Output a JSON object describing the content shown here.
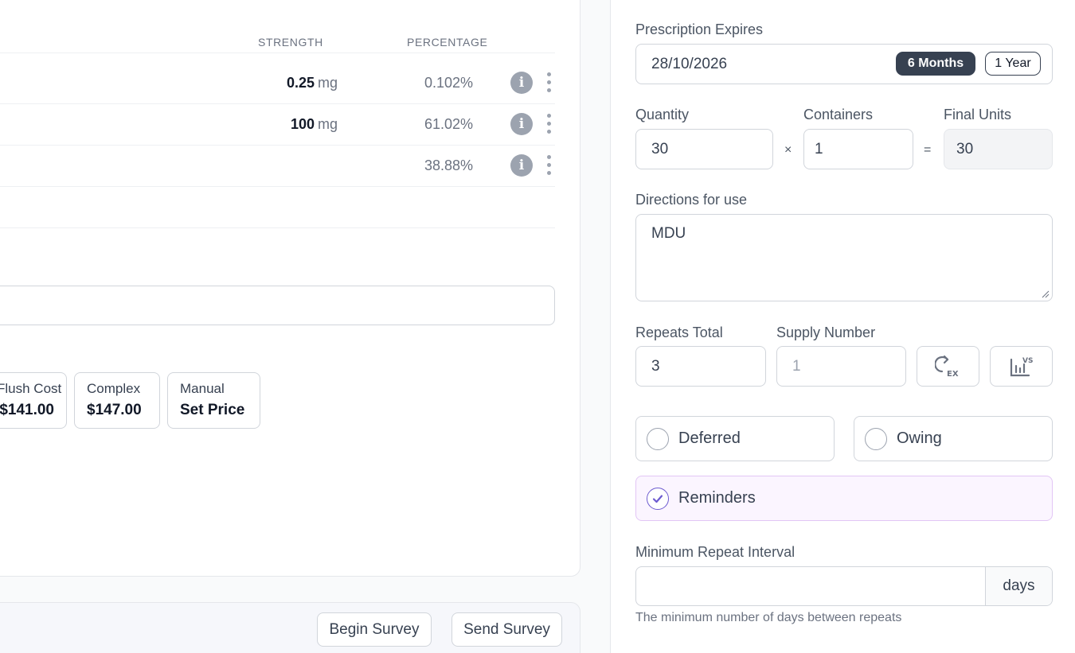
{
  "table": {
    "headers": {
      "strength": "STRENGTH",
      "percentage": "PERCENTAGE"
    },
    "rows": [
      {
        "strength": "0.25",
        "unit": "mg",
        "percentage": "0.102%"
      },
      {
        "strength": "100",
        "unit": "mg",
        "percentage": "61.02%"
      },
      {
        "strength": "",
        "unit": "",
        "percentage": "38.88%"
      }
    ]
  },
  "pricing": {
    "flush": {
      "label": "Flush Cost",
      "value": "$141.00"
    },
    "complex": {
      "label": "Complex",
      "value": "$147.00"
    },
    "manual": {
      "label": "Manual",
      "value": "Set Price"
    }
  },
  "footer": {
    "begin_survey": "Begin Survey",
    "send_survey": "Send Survey"
  },
  "prescription_expires": {
    "label": "Prescription Expires",
    "value": "28/10/2026",
    "options": [
      "6 Months",
      "1 Year"
    ],
    "selected": "6 Months"
  },
  "quantity": {
    "label": "Quantity",
    "value": "30"
  },
  "containers": {
    "label": "Containers",
    "value": "1"
  },
  "final_units": {
    "label": "Final Units",
    "value": "30"
  },
  "operators": {
    "times": "×",
    "equals": "="
  },
  "directions": {
    "label": "Directions for use",
    "value": "MDU"
  },
  "repeats_total": {
    "label": "Repeats Total",
    "value": "3"
  },
  "supply_number": {
    "label": "Supply Number",
    "value": "1"
  },
  "toggles": {
    "deferred": {
      "label": "Deferred",
      "checked": false
    },
    "owing": {
      "label": "Owing",
      "checked": false
    },
    "reminders": {
      "label": "Reminders",
      "checked": true
    }
  },
  "min_repeat_interval": {
    "label": "Minimum Repeat Interval",
    "value": "",
    "unit": "days",
    "help": "The minimum number of days between repeats"
  },
  "icons": {
    "info": "info-icon",
    "kebab": "more-vertical-icon",
    "repeat_ex": "repeat-ex-icon",
    "chart_vs": "chart-vs-icon",
    "check": "check-icon"
  },
  "colors": {
    "chip_active_bg": "#374151",
    "reminder_bg": "#fbf5ff",
    "reminder_border": "#e2c6f5",
    "check_accent": "#6d5bd0"
  }
}
